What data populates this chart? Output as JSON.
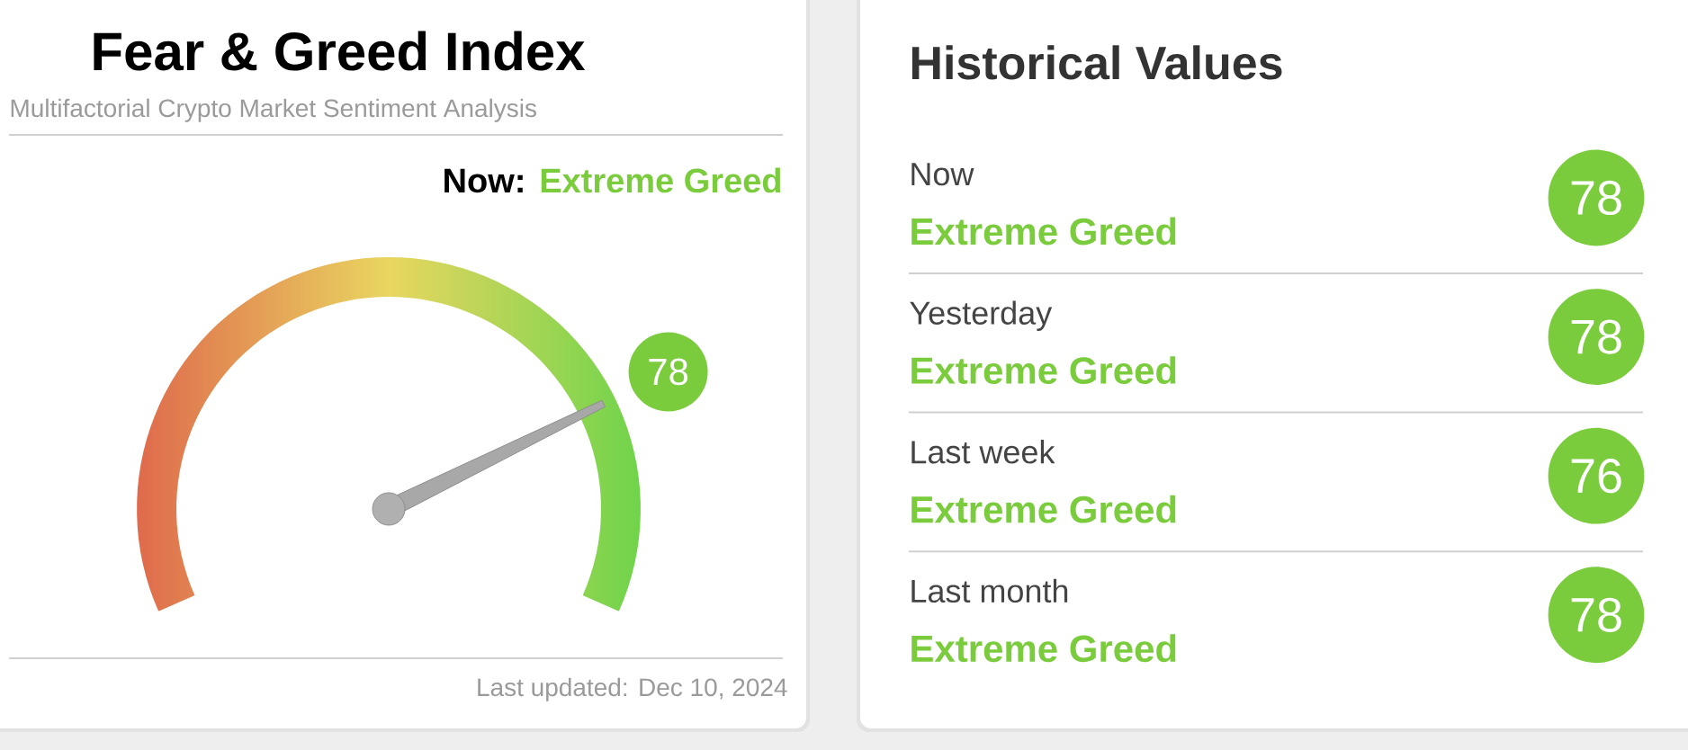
{
  "chart_data": [
    {
      "type": "other",
      "title": "Fear & Greed Index",
      "subtitle": "Multifactorial Crypto Market Sentiment Analysis",
      "values": [
        78
      ],
      "data_labels": true,
      "color": "#7acc3d",
      "annotations": [
        "Now:",
        "Extreme Greed",
        "Last updated: Dec 10, 2024"
      ]
    },
    {
      "type": "other",
      "title": "Historical Values",
      "categories": [
        "Now",
        "Yesterday",
        "Last week",
        "Last month"
      ],
      "values": [
        78,
        78,
        76,
        78
      ],
      "data_labels": true,
      "color": "#7acc3d",
      "annotations": [
        "Extreme Greed",
        "Extreme Greed",
        "Extreme Greed",
        "Extreme Greed"
      ]
    }
  ]
}
